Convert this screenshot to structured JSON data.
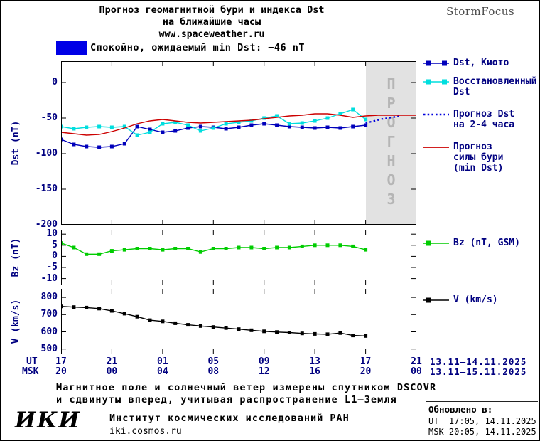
{
  "header": {
    "title_line1": "Прогноз геомагнитной бури и индекса Dst",
    "title_line2": "на ближайшие часы",
    "site_link": "www.spaceweather.ru",
    "brand": "StormFocus"
  },
  "status_banner": {
    "label": "Спокойно, ожидаемый min Dst: −46 nT",
    "swatch_color": "#0000e6"
  },
  "forecast_overlay": {
    "label": "ПРОГНОЗ",
    "region_color": "#e2e2e2",
    "text_color": "#b5b5b5"
  },
  "chart_data": [
    {
      "id": "dst",
      "type": "line",
      "ylabel": "Dst (nT)",
      "ylim": [
        -200,
        30
      ],
      "yticks": [
        0,
        -50,
        -100,
        -150,
        -200
      ],
      "xlim": [
        0,
        28
      ],
      "xtick_hours": [
        0,
        4,
        8,
        12,
        16,
        20,
        24,
        28
      ],
      "forecast_region": {
        "start_hour": 24,
        "end_hour": 28
      },
      "series": [
        {
          "name": "Dst, Киото",
          "color": "#0000bb",
          "marker": "square",
          "x": [
            0,
            1,
            2,
            3,
            4,
            5,
            6,
            7,
            8,
            9,
            10,
            11,
            12,
            13,
            14,
            15,
            16,
            17,
            18,
            19,
            20,
            21,
            22,
            23,
            24
          ],
          "y": [
            -80,
            -87,
            -90,
            -91,
            -90,
            -86,
            -62,
            -66,
            -70,
            -68,
            -64,
            -62,
            -63,
            -65,
            -63,
            -60,
            -58,
            -60,
            -62,
            -63,
            -64,
            -63,
            -64,
            -62,
            -60
          ]
        },
        {
          "name": "Восстановленный Dst",
          "color": "#00dede",
          "marker": "square",
          "x": [
            0,
            1,
            2,
            3,
            4,
            5,
            6,
            7,
            8,
            9,
            10,
            11,
            12,
            13,
            14,
            15,
            16,
            17,
            18,
            19,
            20,
            21,
            22,
            23,
            24
          ],
          "y": [
            -62,
            -65,
            -63,
            -62,
            -63,
            -62,
            -74,
            -70,
            -58,
            -56,
            -60,
            -68,
            -64,
            -58,
            -56,
            -54,
            -50,
            -47,
            -58,
            -57,
            -54,
            -50,
            -44,
            -38,
            -52
          ]
        },
        {
          "name": "Прогноз Dst на 2-4 часа",
          "color": "#0000dd",
          "style": "dotted",
          "x": [
            24,
            24.7,
            25.4,
            26.1,
            26.8
          ],
          "y": [
            -57,
            -54,
            -51,
            -49,
            -47
          ]
        },
        {
          "name": "Прогноз силы бури (min Dst)",
          "color": "#cc0000",
          "x": [
            0,
            1,
            2,
            3,
            4,
            5,
            6,
            7,
            8,
            9,
            10,
            11,
            12,
            13,
            14,
            15,
            16,
            17,
            18,
            19,
            20,
            21,
            22,
            23,
            24,
            25,
            26,
            27,
            28
          ],
          "y": [
            -70,
            -72,
            -74,
            -73,
            -69,
            -64,
            -58,
            -54,
            -52,
            -54,
            -56,
            -57,
            -56,
            -55,
            -54,
            -53,
            -51,
            -49,
            -47,
            -46,
            -44,
            -44,
            -46,
            -49,
            -47,
            -46,
            -46,
            -46,
            -46
          ]
        }
      ]
    },
    {
      "id": "bz",
      "type": "line",
      "ylabel": "Bz (nT)",
      "ylim": [
        -13,
        12
      ],
      "yticks": [
        10,
        5,
        0,
        -5,
        -10
      ],
      "xlim": [
        0,
        28
      ],
      "xtick_hours": [
        0,
        4,
        8,
        12,
        16,
        20,
        24,
        28
      ],
      "series": [
        {
          "name": "Bz (nT, GSM)",
          "color": "#00cc00",
          "marker": "square",
          "x": [
            0,
            1,
            2,
            3,
            4,
            5,
            6,
            7,
            8,
            9,
            10,
            11,
            12,
            13,
            14,
            15,
            16,
            17,
            18,
            19,
            20,
            21,
            22,
            23,
            24
          ],
          "y": [
            6,
            4,
            1,
            1,
            2.5,
            3,
            3.5,
            3.5,
            3,
            3.5,
            3.5,
            2,
            3.5,
            3.5,
            4,
            4,
            3.5,
            4,
            4,
            4.5,
            5,
            5,
            5,
            4.5,
            3
          ]
        }
      ]
    },
    {
      "id": "v",
      "type": "line",
      "ylabel": "V (km/s)",
      "ylim": [
        470,
        850
      ],
      "yticks": [
        800,
        700,
        600,
        500
      ],
      "xlim": [
        0,
        28
      ],
      "xtick_hours": [
        0,
        4,
        8,
        12,
        16,
        20,
        24,
        28
      ],
      "series": [
        {
          "name": "V (km/s)",
          "color": "#000000",
          "marker": "square",
          "x": [
            0,
            1,
            2,
            3,
            4,
            5,
            6,
            7,
            8,
            9,
            10,
            11,
            12,
            13,
            14,
            15,
            16,
            17,
            18,
            19,
            20,
            21,
            22,
            23,
            24
          ],
          "y": [
            748,
            744,
            741,
            735,
            722,
            706,
            688,
            668,
            661,
            650,
            641,
            634,
            628,
            622,
            616,
            609,
            603,
            599,
            596,
            591,
            588,
            586,
            593,
            579,
            576
          ]
        }
      ]
    }
  ],
  "xaxis": {
    "ut_row_label": "UT",
    "msk_row_label": "MSK",
    "ut_ticks": [
      "17",
      "21",
      "01",
      "05",
      "09",
      "13",
      "17",
      "21"
    ],
    "msk_ticks": [
      "20",
      "00",
      "04",
      "08",
      "12",
      "16",
      "20",
      "00"
    ],
    "ut_date_range": "13.11—14.11.2025",
    "msk_date_range": "13.11—15.11.2025"
  },
  "legends": {
    "dst": [
      {
        "label": "Dst, Киото",
        "color": "#0000bb"
      },
      {
        "label": "Восстановленный\nDst",
        "color": "#00dede"
      },
      {
        "label": "Прогноз Dst\nна 2-4 часа",
        "color": "#0000dd"
      },
      {
        "label": "Прогноз\nсилы бури\n(min Dst)",
        "color": "#cc0000"
      }
    ],
    "bz": {
      "label": "Bz (nT, GSM)",
      "color": "#00cc00"
    },
    "v": {
      "label": "V (km/s)",
      "color": "#000000"
    }
  },
  "footer": {
    "note_line1": "Магнитное поле и солнечный ветер измерены спутником DSCOVR",
    "note_line2": "и сдвинуты вперед, учитывая распространение L1—Земля",
    "logo": "ИКИ",
    "institute": "Институт космических исследований РАН",
    "site_link": "iki.cosmos.ru",
    "updated_label": "Обновлено в:",
    "updated_ut": "UT  17:05, 14.11.2025",
    "updated_msk": "MSK 20:05, 14.11.2025"
  }
}
